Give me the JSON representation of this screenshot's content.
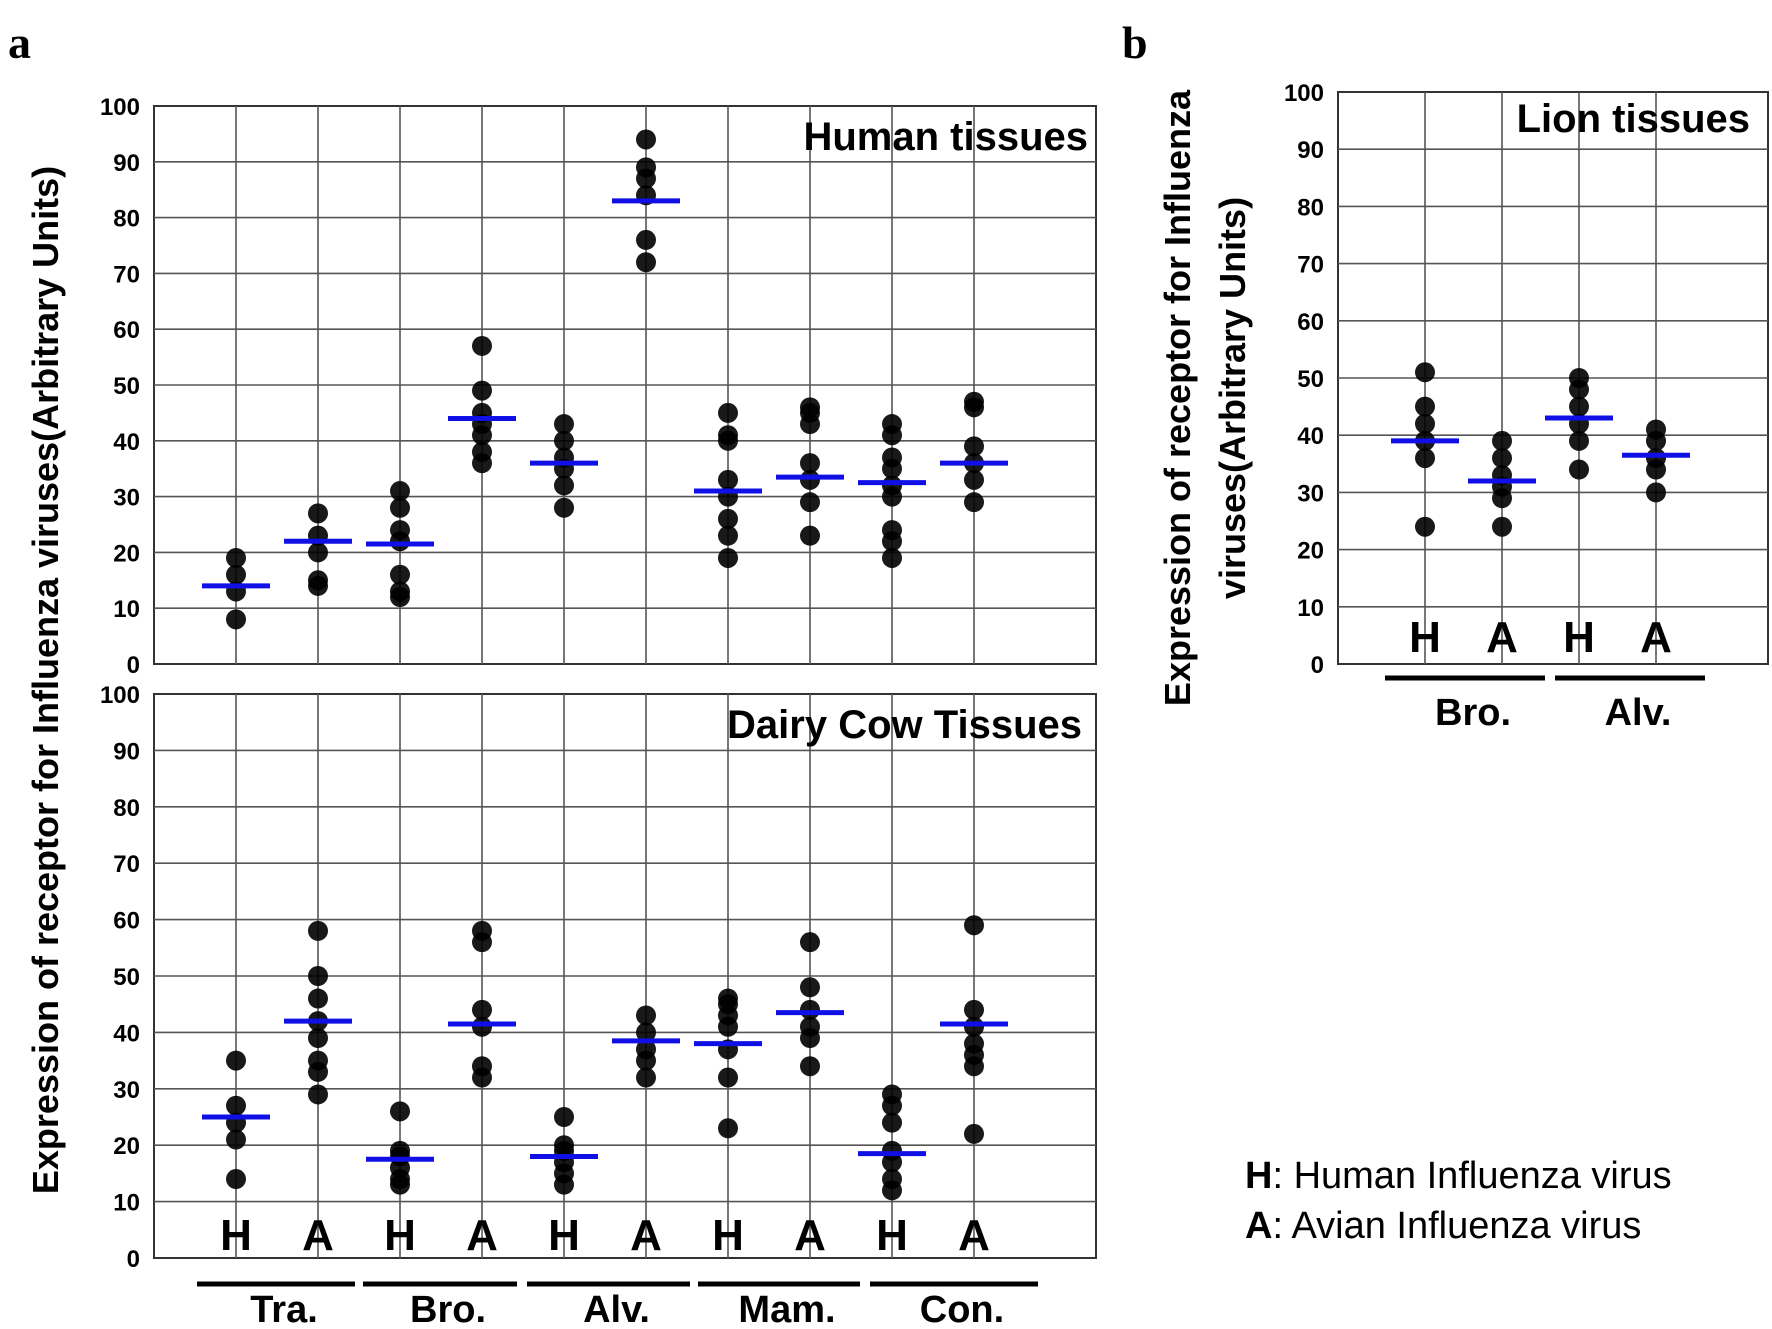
{
  "panel_a_label": "a",
  "panel_b_label": "b",
  "y_axis_a": "Expression of receptor for Influenza viruses(Arbitrary Units)",
  "y_axis_b": [
    "Expression of receptor for Influenza",
    "viruses(Arbitrary Units)"
  ],
  "legend": [
    {
      "key": "H",
      "text": ": Human Influenza virus"
    },
    {
      "key": "A",
      "text": ": Avian Influenza virus"
    }
  ],
  "colors": {
    "mean_marker": "#1010e6",
    "point": "#000000",
    "grid": "#555555"
  },
  "chart_data": [
    {
      "type": "scatter",
      "title": "Human tissues",
      "ylim": [
        0,
        100
      ],
      "yticks": [
        0,
        10,
        20,
        30,
        40,
        50,
        60,
        70,
        80,
        90,
        100
      ],
      "columns": [
        "H",
        "A",
        "H",
        "A",
        "H",
        "A",
        "H",
        "A",
        "H",
        "A"
      ],
      "groups": [
        "Tra.",
        "Bro.",
        "Alv.",
        "Mam.",
        "Con."
      ],
      "show_column_labels": false,
      "series": [
        {
          "group": "Tra.",
          "virus": "H",
          "mean": 14,
          "points": [
            8,
            13,
            16,
            19
          ]
        },
        {
          "group": "Tra.",
          "virus": "A",
          "mean": 22,
          "points": [
            14,
            15,
            20,
            23,
            27
          ]
        },
        {
          "group": "Bro.",
          "virus": "H",
          "mean": 21.5,
          "points": [
            12,
            13,
            16,
            22,
            24,
            28,
            31
          ]
        },
        {
          "group": "Bro.",
          "virus": "A",
          "mean": 44,
          "points": [
            36,
            38,
            41,
            43,
            45,
            49,
            57
          ]
        },
        {
          "group": "Alv.",
          "virus": "H",
          "mean": 36,
          "points": [
            28,
            32,
            35,
            37,
            40,
            43
          ]
        },
        {
          "group": "Alv.",
          "virus": "A",
          "mean": 83,
          "points": [
            72,
            76,
            84,
            87,
            89,
            94
          ]
        },
        {
          "group": "Mam.",
          "virus": "H",
          "mean": 31,
          "points": [
            19,
            23,
            26,
            30,
            33,
            40,
            41,
            45
          ]
        },
        {
          "group": "Mam.",
          "virus": "A",
          "mean": 33.5,
          "points": [
            23,
            29,
            33,
            36,
            43,
            45,
            46
          ]
        },
        {
          "group": "Con.",
          "virus": "H",
          "mean": 32.5,
          "points": [
            19,
            22,
            24,
            30,
            32,
            35,
            37,
            41,
            43
          ]
        },
        {
          "group": "Con.",
          "virus": "A",
          "mean": 36,
          "points": [
            29,
            33,
            36,
            39,
            46,
            47
          ]
        }
      ]
    },
    {
      "type": "scatter",
      "title": "Dairy Cow Tissues",
      "ylim": [
        0,
        100
      ],
      "yticks": [
        0,
        10,
        20,
        30,
        40,
        50,
        60,
        70,
        80,
        90,
        100
      ],
      "columns": [
        "H",
        "A",
        "H",
        "A",
        "H",
        "A",
        "H",
        "A",
        "H",
        "A"
      ],
      "groups": [
        "Tra.",
        "Bro.",
        "Alv.",
        "Mam.",
        "Con."
      ],
      "show_column_labels": true,
      "series": [
        {
          "group": "Tra.",
          "virus": "H",
          "mean": 25,
          "points": [
            14,
            21,
            24,
            27,
            35
          ]
        },
        {
          "group": "Tra.",
          "virus": "A",
          "mean": 42,
          "points": [
            29,
            33,
            35,
            39,
            42,
            46,
            50,
            58
          ]
        },
        {
          "group": "Bro.",
          "virus": "H",
          "mean": 17.5,
          "points": [
            13,
            14,
            16,
            18,
            19,
            26
          ]
        },
        {
          "group": "Bro.",
          "virus": "A",
          "mean": 41.5,
          "points": [
            32,
            34,
            41,
            44,
            56,
            58
          ]
        },
        {
          "group": "Alv.",
          "virus": "H",
          "mean": 18,
          "points": [
            13,
            15,
            17,
            19,
            20,
            25
          ]
        },
        {
          "group": "Alv.",
          "virus": "A",
          "mean": 38.5,
          "points": [
            32,
            35,
            37,
            40,
            43
          ]
        },
        {
          "group": "Mam.",
          "virus": "H",
          "mean": 38,
          "points": [
            23,
            32,
            37,
            41,
            43,
            45,
            46
          ]
        },
        {
          "group": "Mam.",
          "virus": "A",
          "mean": 43.5,
          "points": [
            34,
            39,
            41,
            44,
            48,
            56
          ]
        },
        {
          "group": "Con.",
          "virus": "H",
          "mean": 18.5,
          "points": [
            12,
            14,
            17,
            19,
            24,
            27,
            29
          ]
        },
        {
          "group": "Con.",
          "virus": "A",
          "mean": 41.5,
          "points": [
            22,
            34,
            36,
            38,
            41,
            44,
            59
          ]
        }
      ]
    },
    {
      "type": "scatter",
      "title": "Lion tissues",
      "ylim": [
        0,
        100
      ],
      "yticks": [
        0,
        10,
        20,
        30,
        40,
        50,
        60,
        70,
        80,
        90,
        100
      ],
      "columns": [
        "H",
        "A",
        "H",
        "A"
      ],
      "groups": [
        "Bro.",
        "Alv."
      ],
      "show_column_labels": true,
      "series": [
        {
          "group": "Bro.",
          "virus": "H",
          "mean": 39,
          "points": [
            24,
            36,
            39,
            42,
            45,
            51
          ]
        },
        {
          "group": "Bro.",
          "virus": "A",
          "mean": 32,
          "points": [
            24,
            29,
            31,
            33,
            36,
            39
          ]
        },
        {
          "group": "Alv.",
          "virus": "H",
          "mean": 43,
          "points": [
            34,
            39,
            42,
            45,
            48,
            50
          ]
        },
        {
          "group": "Alv.",
          "virus": "A",
          "mean": 36.5,
          "points": [
            30,
            34,
            36,
            39,
            41
          ]
        }
      ]
    }
  ]
}
